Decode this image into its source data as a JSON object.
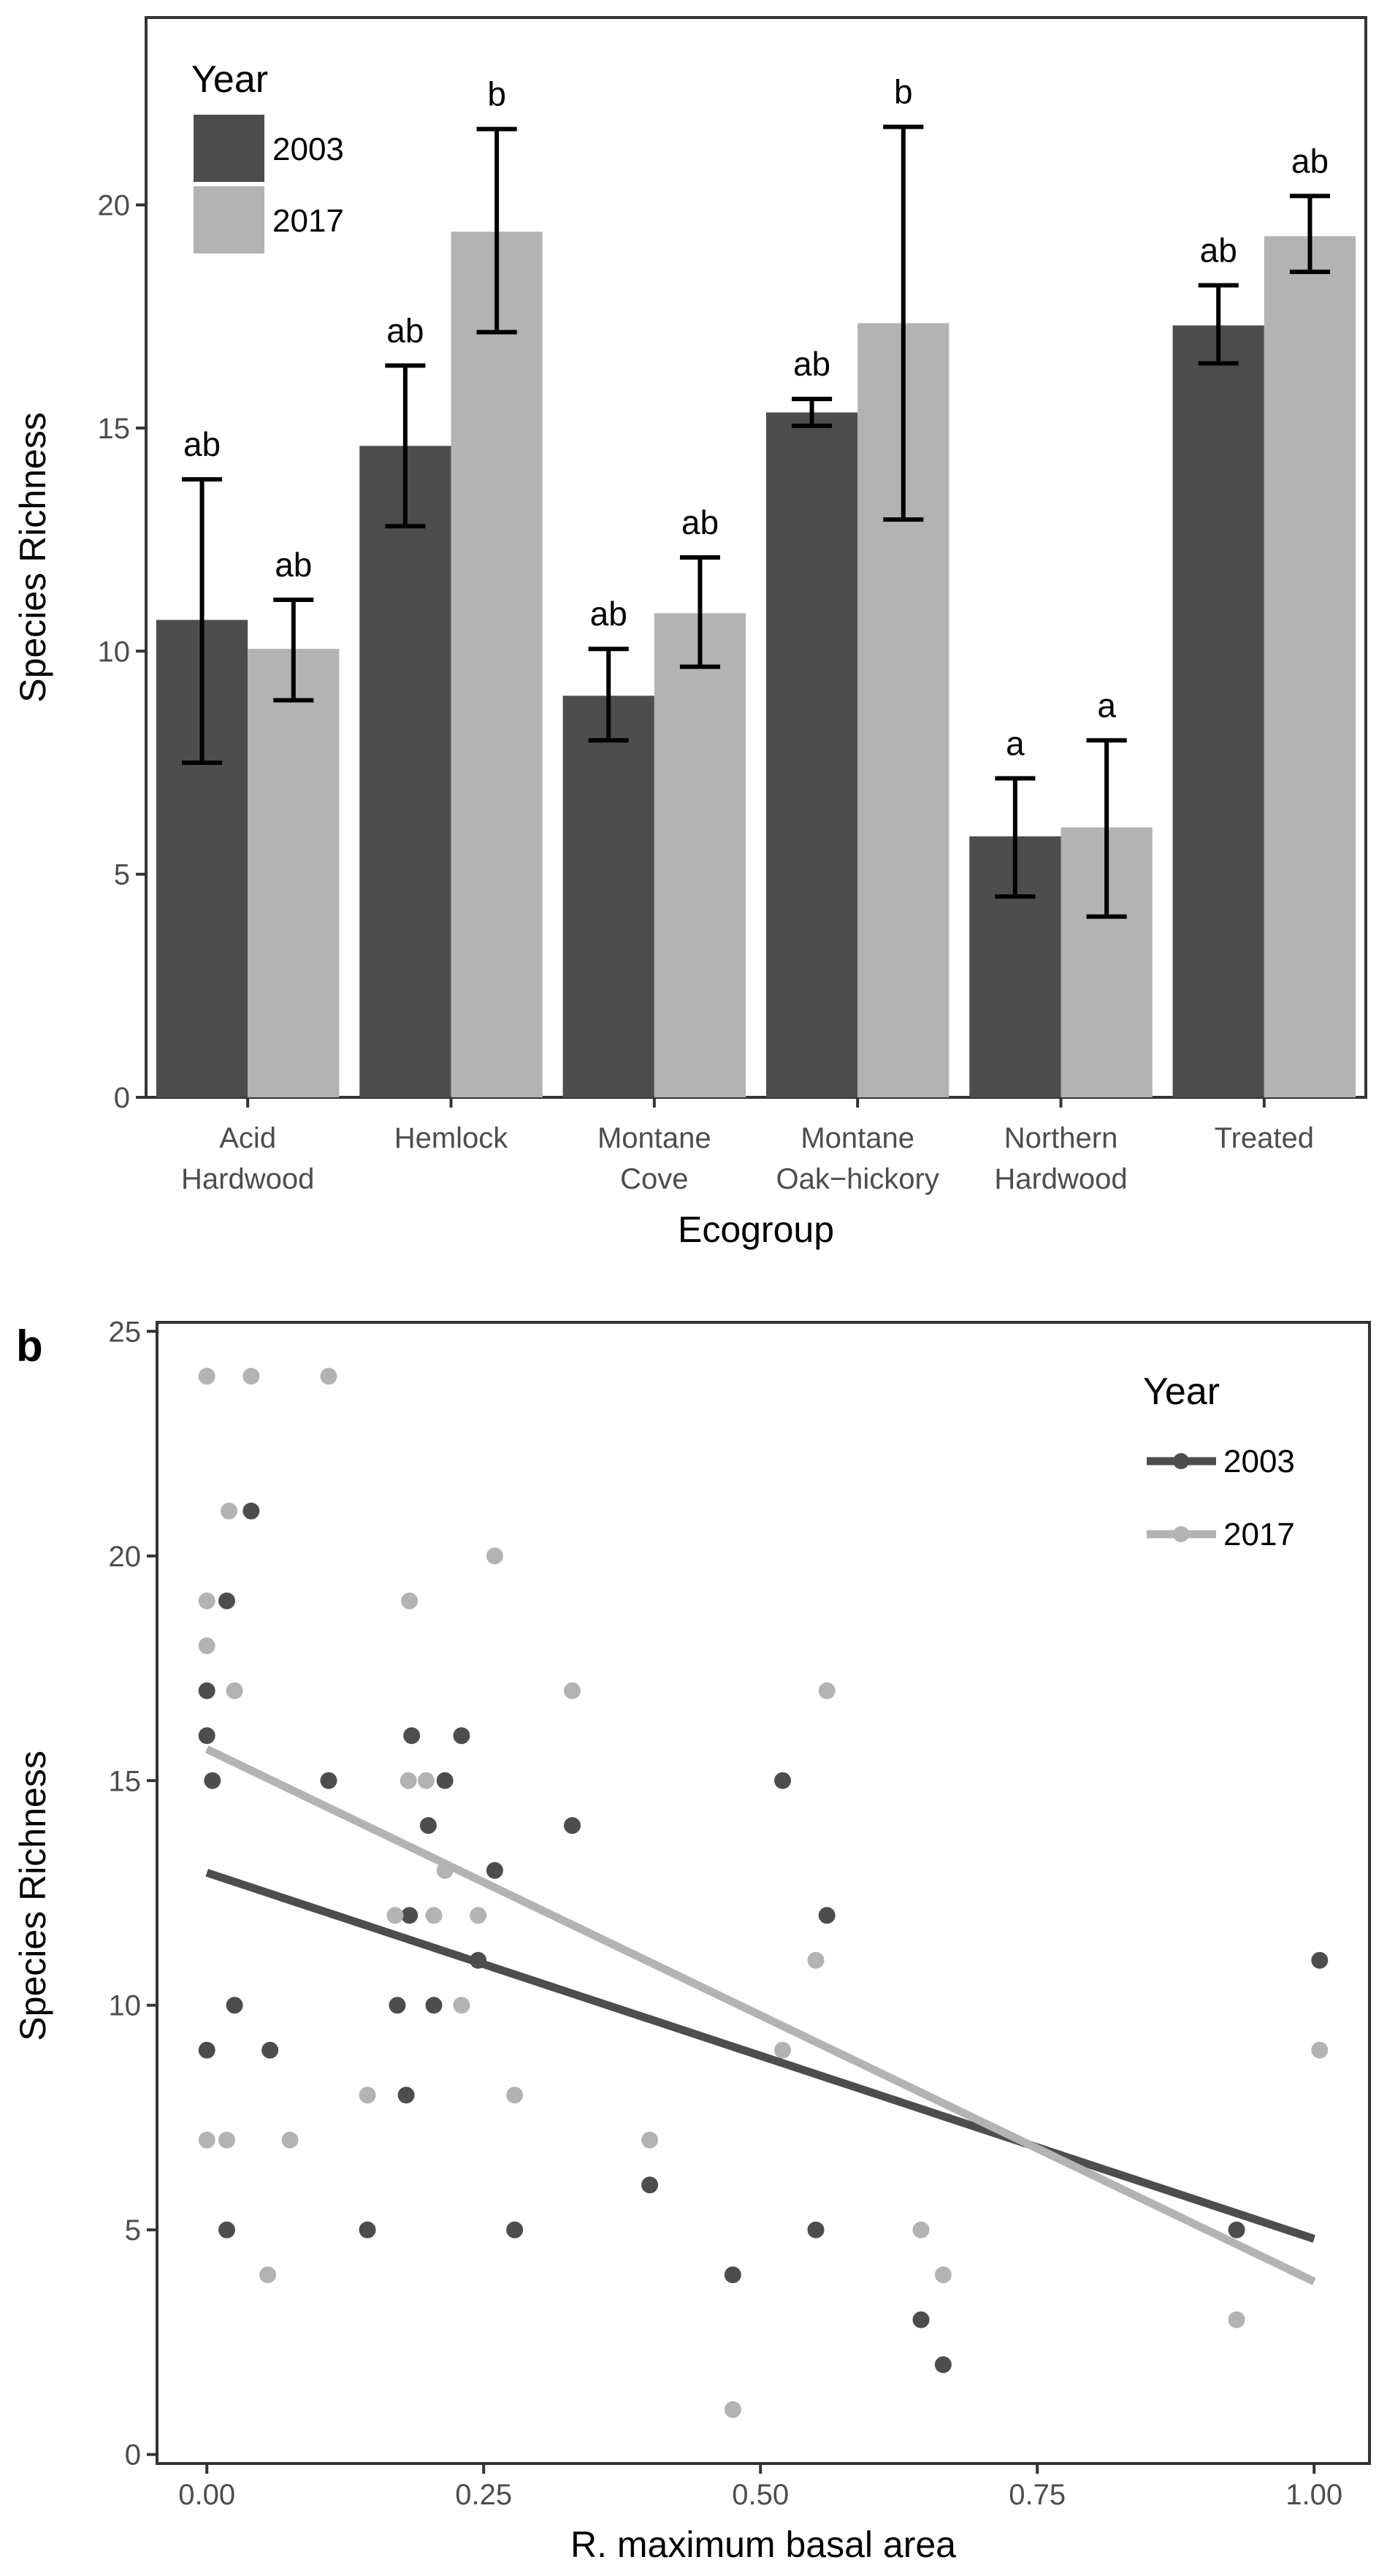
{
  "chart_data": [
    {
      "type": "bar",
      "title": "",
      "xlabel": "Ecogroup",
      "ylabel": "Species Richness",
      "ylim": [
        0,
        24.2
      ],
      "yticks": [
        0,
        5,
        10,
        15,
        20
      ],
      "ytick_labels": [
        "0",
        "5",
        "10",
        "15",
        "20"
      ],
      "grid": false,
      "legend": {
        "title": "Year",
        "position": "top-left"
      },
      "categories": [
        {
          "lines": [
            "Acid",
            "Hardwood"
          ]
        },
        {
          "lines": [
            "Hemlock"
          ]
        },
        {
          "lines": [
            "Montane",
            "Cove"
          ]
        },
        {
          "lines": [
            "Montane",
            "Oak−hickory"
          ]
        },
        {
          "lines": [
            "Northern",
            "Hardwood"
          ]
        },
        {
          "lines": [
            "Treated"
          ]
        }
      ],
      "series": [
        {
          "name": "2003",
          "color": "#4d4d4d",
          "values": [
            10.7,
            14.6,
            9.0,
            15.35,
            5.85,
            17.3
          ],
          "error_low": [
            7.5,
            12.8,
            8.0,
            15.05,
            4.5,
            16.45
          ],
          "error_high": [
            13.85,
            16.4,
            10.05,
            15.65,
            7.15,
            18.2
          ],
          "labels": [
            "ab",
            "ab",
            "ab",
            "ab",
            "a",
            "ab"
          ]
        },
        {
          "name": "2017",
          "color": "#b3b3b3",
          "values": [
            10.05,
            19.4,
            10.85,
            17.35,
            6.05,
            19.3
          ],
          "error_low": [
            8.9,
            17.15,
            9.65,
            12.95,
            4.05,
            18.5
          ],
          "error_high": [
            11.15,
            21.7,
            12.1,
            21.75,
            8.0,
            20.2
          ],
          "labels": [
            "ab",
            "b",
            "ab",
            "b",
            "a",
            "ab"
          ]
        }
      ]
    },
    {
      "type": "scatter",
      "panel_label": "b",
      "title": "",
      "xlabel": "R. maximum basal area",
      "ylabel": "Species Richness",
      "xlim": [
        -0.045,
        1.05
      ],
      "ylim": [
        -0.2,
        25.2
      ],
      "xticks": [
        0,
        0.25,
        0.5,
        0.75,
        1.0
      ],
      "xtick_labels": [
        "0.00",
        "0.25",
        "0.50",
        "0.75",
        "1.00"
      ],
      "yticks": [
        0,
        5,
        10,
        15,
        20,
        25
      ],
      "ytick_labels": [
        "0",
        "5",
        "10",
        "15",
        "20",
        "25"
      ],
      "grid": false,
      "legend": {
        "title": "Year",
        "position": "top-right"
      },
      "series": [
        {
          "name": "2003",
          "color": "#4d4d4d",
          "points": [
            [
              0.0,
              17
            ],
            [
              0.0,
              16
            ],
            [
              0.005,
              15
            ],
            [
              0.0,
              9
            ],
            [
              0.018,
              19
            ],
            [
              0.04,
              21
            ],
            [
              0.025,
              10
            ],
            [
              0.018,
              5
            ],
            [
              0.057,
              9
            ],
            [
              0.11,
              15
            ],
            [
              0.145,
              5
            ],
            [
              0.172,
              10
            ],
            [
              0.18,
              8
            ],
            [
              0.183,
              12
            ],
            [
              0.185,
              16
            ],
            [
              0.2,
              14
            ],
            [
              0.205,
              10
            ],
            [
              0.215,
              15
            ],
            [
              0.23,
              16
            ],
            [
              0.245,
              11
            ],
            [
              0.26,
              13
            ],
            [
              0.278,
              5
            ],
            [
              0.33,
              14
            ],
            [
              0.4,
              6
            ],
            [
              0.475,
              4
            ],
            [
              0.52,
              15
            ],
            [
              0.55,
              5
            ],
            [
              0.56,
              12
            ],
            [
              0.645,
              3
            ],
            [
              0.665,
              2
            ],
            [
              0.93,
              5
            ],
            [
              1.005,
              11
            ]
          ],
          "fit": {
            "x": [
              0.0,
              1.0
            ],
            "y": [
              12.95,
              4.8
            ]
          }
        },
        {
          "name": "2017",
          "color": "#b3b3b3",
          "points": [
            [
              0.0,
              24
            ],
            [
              0.04,
              24
            ],
            [
              0.11,
              24
            ],
            [
              0.02,
              21
            ],
            [
              0.0,
              19
            ],
            [
              0.0,
              18
            ],
            [
              0.025,
              17
            ],
            [
              0.0,
              7
            ],
            [
              0.018,
              7
            ],
            [
              0.055,
              4
            ],
            [
              0.075,
              7
            ],
            [
              0.145,
              8
            ],
            [
              0.17,
              12
            ],
            [
              0.182,
              15
            ],
            [
              0.183,
              19
            ],
            [
              0.198,
              15
            ],
            [
              0.205,
              12
            ],
            [
              0.215,
              13
            ],
            [
              0.23,
              10
            ],
            [
              0.245,
              12
            ],
            [
              0.26,
              20
            ],
            [
              0.278,
              8
            ],
            [
              0.33,
              17
            ],
            [
              0.4,
              7
            ],
            [
              0.475,
              1
            ],
            [
              0.52,
              9
            ],
            [
              0.55,
              11
            ],
            [
              0.56,
              17
            ],
            [
              0.645,
              5
            ],
            [
              0.665,
              4
            ],
            [
              0.93,
              3
            ],
            [
              1.005,
              9
            ]
          ],
          "fit": {
            "x": [
              0.0,
              1.0
            ],
            "y": [
              15.7,
              3.85
            ]
          }
        }
      ]
    }
  ]
}
